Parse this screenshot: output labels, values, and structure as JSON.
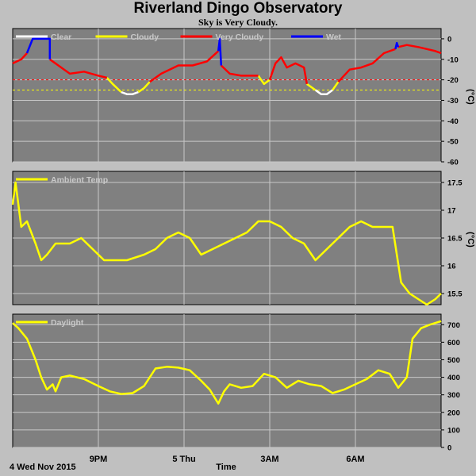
{
  "header": {
    "title": "Riverland Dingo Observatory",
    "status": "Sky is Very Cloudy."
  },
  "footer": {
    "date": "4 Wed Nov 2015",
    "xlabel": "Time"
  },
  "colors": {
    "background": "#c0c0c0",
    "panel": "#808080",
    "grid": "#c8c8c8",
    "clear": "#ffffff",
    "cloudy": "#ffff00",
    "very_cloudy": "#ff0000",
    "wet": "#0000ff",
    "threshold_cloudy": "#ffff00",
    "threshold_very_cloudy": "#ff0000"
  },
  "chart_data": [
    {
      "type": "line",
      "panel": "sky",
      "ylabel": "(°C)",
      "ylim": [
        -60,
        5
      ],
      "yticks": [
        0,
        -10,
        -20,
        -30,
        -40,
        -50,
        -60
      ],
      "grid": true,
      "legend": [
        "Clear",
        "Cloudy",
        "Very Cloudy",
        "Wet"
      ],
      "thresholds": [
        -20,
        -25
      ],
      "series": [
        {
          "name": "Clear",
          "color": "white",
          "segments": [
            [
              [
                10.8,
                -26
              ],
              [
                11.0,
                -27
              ],
              [
                11.2,
                -27
              ],
              [
                11.4,
                -26
              ]
            ],
            [
              [
                17.6,
                -25
              ],
              [
                17.8,
                -27
              ],
              [
                18.0,
                -27
              ],
              [
                18.2,
                -25
              ]
            ]
          ]
        },
        {
          "name": "Cloudy",
          "color": "yellow",
          "segments": [
            [
              [
                10.3,
                -19
              ],
              [
                10.5,
                -22
              ],
              [
                10.8,
                -26
              ]
            ],
            [
              [
                11.4,
                -26
              ],
              [
                11.6,
                -24
              ],
              [
                11.8,
                -21
              ]
            ],
            [
              [
                15.6,
                -18
              ],
              [
                15.8,
                -22
              ],
              [
                16.0,
                -20
              ]
            ],
            [
              [
                17.3,
                -22
              ],
              [
                17.6,
                -25
              ]
            ],
            [
              [
                18.2,
                -25
              ],
              [
                18.4,
                -21
              ]
            ]
          ]
        },
        {
          "name": "Very Cloudy",
          "color": "red",
          "segments": [
            [
              [
                7.0,
                -12
              ],
              [
                7.3,
                -10
              ],
              [
                7.5,
                -7
              ]
            ],
            [
              [
                8.3,
                -10
              ],
              [
                8.7,
                -14
              ],
              [
                9.0,
                -17
              ],
              [
                9.5,
                -16
              ],
              [
                10.0,
                -18
              ],
              [
                10.3,
                -19
              ]
            ],
            [
              [
                11.8,
                -21
              ],
              [
                12.2,
                -17
              ],
              [
                12.8,
                -13
              ],
              [
                13.3,
                -13
              ],
              [
                13.8,
                -11
              ],
              [
                14.2,
                -6
              ]
            ],
            [
              [
                14.3,
                -13
              ],
              [
                14.6,
                -17
              ],
              [
                15.0,
                -18
              ],
              [
                15.4,
                -18
              ],
              [
                15.6,
                -18
              ]
            ],
            [
              [
                16.0,
                -20
              ],
              [
                16.2,
                -12
              ],
              [
                16.4,
                -9
              ],
              [
                16.6,
                -14
              ],
              [
                16.9,
                -12
              ],
              [
                17.2,
                -14
              ],
              [
                17.3,
                -22
              ]
            ],
            [
              [
                18.4,
                -21
              ],
              [
                18.8,
                -15
              ],
              [
                19.2,
                -14
              ],
              [
                19.6,
                -12
              ],
              [
                20.0,
                -7
              ],
              [
                20.4,
                -5
              ]
            ],
            [
              [
                20.5,
                -4
              ],
              [
                20.8,
                -3
              ],
              [
                21.2,
                -4
              ],
              [
                21.5,
                -5
              ],
              [
                21.8,
                -6
              ],
              [
                22.0,
                -7
              ]
            ]
          ]
        },
        {
          "name": "Wet",
          "color": "blue",
          "segments": [
            [
              [
                7.5,
                -7
              ],
              [
                7.7,
                0
              ],
              [
                8.0,
                0
              ],
              [
                8.3,
                0
              ],
              [
                8.3,
                -10
              ]
            ],
            [
              [
                14.2,
                -6
              ],
              [
                14.25,
                0
              ],
              [
                14.3,
                -13
              ]
            ],
            [
              [
                20.4,
                -5
              ],
              [
                20.45,
                -2
              ],
              [
                20.5,
                -4
              ]
            ]
          ]
        }
      ]
    },
    {
      "type": "line",
      "panel": "ambient",
      "ylabel": "(°C)",
      "ylim": [
        15.3,
        17.7
      ],
      "yticks": [
        17.5,
        17.0,
        16.5,
        16.0,
        15.5
      ],
      "grid": true,
      "legend": [
        "Ambient Temp"
      ],
      "series": [
        {
          "name": "Ambient Temp",
          "color": "yellow",
          "x": [
            7.0,
            7.1,
            7.3,
            7.5,
            7.8,
            8.0,
            8.2,
            8.5,
            9.0,
            9.4,
            9.8,
            10.0,
            10.2,
            10.6,
            11.0,
            11.6,
            12.0,
            12.4,
            12.8,
            13.2,
            13.6,
            14.0,
            14.4,
            14.8,
            15.2,
            15.6,
            16.0,
            16.4,
            16.8,
            17.2,
            17.6,
            18.0,
            18.4,
            18.8,
            19.2,
            19.6,
            20.0,
            20.3,
            20.6,
            20.9,
            21.2,
            21.5,
            21.8,
            22.0
          ],
          "values": [
            17.1,
            17.5,
            16.7,
            16.8,
            16.4,
            16.1,
            16.2,
            16.4,
            16.4,
            16.5,
            16.3,
            16.2,
            16.1,
            16.1,
            16.1,
            16.2,
            16.3,
            16.5,
            16.6,
            16.5,
            16.2,
            16.3,
            16.4,
            16.5,
            16.6,
            16.8,
            16.8,
            16.7,
            16.5,
            16.4,
            16.1,
            16.3,
            16.5,
            16.7,
            16.8,
            16.7,
            16.7,
            16.7,
            15.7,
            15.5,
            15.4,
            15.3,
            15.4,
            15.5
          ]
        }
      ]
    },
    {
      "type": "line",
      "panel": "daylight",
      "ylim": [
        0,
        760
      ],
      "yticks": [
        700,
        600,
        500,
        400,
        300,
        200,
        100,
        0
      ],
      "grid": true,
      "legend": [
        "Daylight"
      ],
      "series": [
        {
          "name": "Daylight",
          "color": "yellow",
          "x": [
            7.0,
            7.2,
            7.5,
            7.8,
            8.0,
            8.2,
            8.4,
            8.5,
            8.7,
            9.0,
            9.5,
            10.0,
            10.4,
            10.8,
            11.2,
            11.6,
            12.0,
            12.4,
            12.8,
            13.2,
            13.6,
            13.9,
            14.2,
            14.4,
            14.6,
            15.0,
            15.4,
            15.8,
            16.2,
            16.6,
            17.0,
            17.4,
            17.8,
            18.2,
            18.6,
            19.0,
            19.4,
            19.8,
            20.2,
            20.5,
            20.8,
            21.0,
            21.3,
            21.6,
            22.0
          ],
          "values": [
            710,
            680,
            620,
            500,
            400,
            330,
            360,
            320,
            400,
            410,
            390,
            350,
            320,
            305,
            310,
            350,
            450,
            460,
            455,
            440,
            380,
            330,
            250,
            320,
            360,
            340,
            350,
            420,
            400,
            340,
            380,
            360,
            350,
            310,
            330,
            360,
            390,
            440,
            420,
            340,
            400,
            620,
            680,
            700,
            720
          ]
        }
      ]
    }
  ],
  "x_axis": {
    "range_hours": [
      7,
      22
    ],
    "ticks": [
      {
        "label": "9PM",
        "hour": 10
      },
      {
        "label": "5 Thu",
        "hour": 13
      },
      {
        "label": "3AM",
        "hour": 16
      },
      {
        "label": "6AM",
        "hour": 19
      }
    ]
  }
}
